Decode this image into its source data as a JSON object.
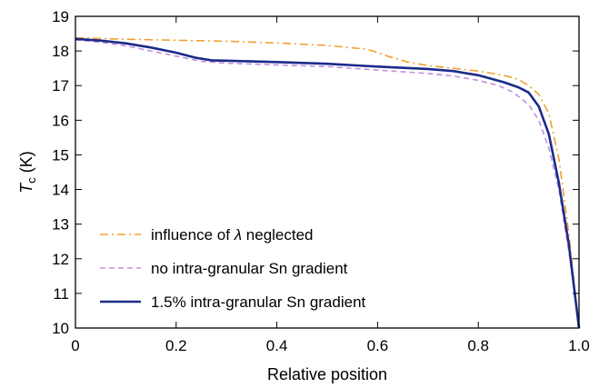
{
  "chart_data": {
    "type": "line",
    "xlabel": "Relative position",
    "ylabel": {
      "symbol": "T",
      "subscript": "c",
      "unit": " (K)"
    },
    "xlim": [
      0,
      1
    ],
    "ylim": [
      10,
      19
    ],
    "xticks": [
      "0",
      "0.2",
      "0.4",
      "0.6",
      "0.8",
      "1.0"
    ],
    "yticks": [
      "10",
      "11",
      "12",
      "13",
      "14",
      "15",
      "16",
      "17",
      "18",
      "19"
    ],
    "grid": false,
    "legend_position": "bottom-left",
    "series": [
      {
        "name": {
          "before": "influence of ",
          "symbol": "λ",
          "after": " neglected"
        },
        "color": "#f0a030",
        "dash": "dash-dot",
        "x": [
          0,
          0.1,
          0.2,
          0.3,
          0.4,
          0.5,
          0.58,
          0.62,
          0.66,
          0.7,
          0.75,
          0.8,
          0.85,
          0.88,
          0.9,
          0.92,
          0.94,
          0.96,
          0.98,
          1.0
        ],
        "y": [
          18.38,
          18.34,
          18.31,
          18.28,
          18.23,
          18.16,
          18.05,
          17.85,
          17.68,
          17.58,
          17.5,
          17.42,
          17.3,
          17.18,
          17.0,
          16.75,
          16.2,
          14.9,
          12.7,
          10.0
        ]
      },
      {
        "name": "no intra-granular Sn gradient",
        "color": "#c090e0",
        "dash": "dashed",
        "x": [
          0,
          0.05,
          0.1,
          0.15,
          0.2,
          0.25,
          0.3,
          0.4,
          0.5,
          0.6,
          0.7,
          0.75,
          0.8,
          0.84,
          0.87,
          0.9,
          0.92,
          0.94,
          0.96,
          0.98,
          1.0
        ],
        "y": [
          18.32,
          18.25,
          18.15,
          18.0,
          17.85,
          17.7,
          17.65,
          17.6,
          17.55,
          17.45,
          17.35,
          17.28,
          17.15,
          17.0,
          16.8,
          16.45,
          16.0,
          15.2,
          14.0,
          12.2,
          10.0
        ]
      },
      {
        "name": "1.5% intra-granular Sn gradient",
        "color": "#1c2a8a",
        "dash": "solid",
        "x": [
          0,
          0.05,
          0.1,
          0.15,
          0.2,
          0.24,
          0.27,
          0.3,
          0.4,
          0.5,
          0.6,
          0.7,
          0.75,
          0.8,
          0.85,
          0.88,
          0.9,
          0.92,
          0.94,
          0.96,
          0.98,
          1.0
        ],
        "y": [
          18.35,
          18.3,
          18.22,
          18.1,
          17.95,
          17.8,
          17.73,
          17.72,
          17.68,
          17.63,
          17.55,
          17.48,
          17.42,
          17.3,
          17.1,
          16.95,
          16.8,
          16.4,
          15.6,
          14.2,
          12.4,
          10.0
        ]
      }
    ]
  }
}
